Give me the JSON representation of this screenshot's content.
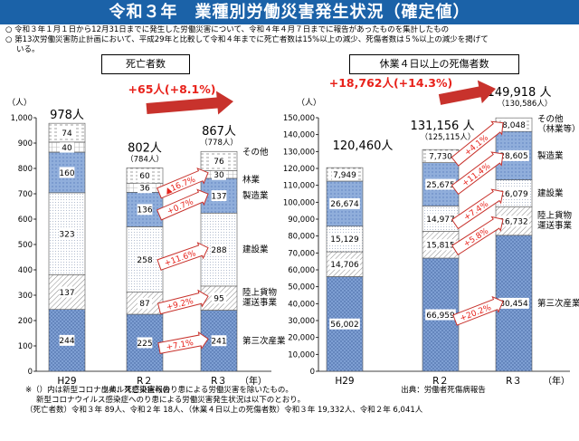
{
  "header": {
    "title": "令和３年　業種別労働災害発生状況（確定値）"
  },
  "bullets": [
    "令和３年１月１日から12月31日までに発生した労働災害について、令和４年４月７日までに報告があったものを集計したもの",
    "第13次労働災害防止計画において、平成29年と比較して令和４年までに死亡者数は15%以上の減少、死傷者数は５%以上の減少を掲げて",
    "いる。"
  ],
  "footnote": [
    "※（）内は新型コロナウイルス感染症へのり患による労働災害を除いたもの。",
    "新型コロナウイルス感染症へのり患による労働災害発生状況は以下のとおり。",
    "（死亡者数）令和３年 89人、令和２年 18人、（休業４日以上の死傷者数）令和３年 19,332人、令和２年 6,041人"
  ],
  "colors": {
    "header_bg": "#1b62a8",
    "tertiary": "#7e9fd3",
    "transport": "#ffffff",
    "construction": "#ffffff",
    "manufacturing": "#90aedb",
    "forestry": "#ffffff",
    "other": "#ffffff",
    "arrow_red": "#c8322c",
    "change_red": "#e8221b"
  },
  "chart_data": [
    {
      "type": "bar",
      "stacked": true,
      "title": "死亡者数",
      "unit_label": "（人）",
      "year_unit": "（年）",
      "source": "出典：死亡災害報告",
      "categories": [
        "H29",
        "R２",
        "R３"
      ],
      "ylim": [
        0,
        1000
      ],
      "yticks": [
        "0",
        "100",
        "200",
        "300",
        "400",
        "500",
        "600",
        "700",
        "800",
        "900",
        "1,000"
      ],
      "series": [
        {
          "name": "第三次産業",
          "values": [
            244,
            225,
            241
          ],
          "labels": [
            "244",
            "225",
            "241"
          ]
        },
        {
          "name": "陸上貨物運送事業",
          "values": [
            137,
            87,
            95
          ],
          "labels": [
            "137",
            "87",
            "95"
          ]
        },
        {
          "name": "建設業",
          "values": [
            323,
            258,
            288
          ],
          "labels": [
            "323",
            "258",
            "288"
          ]
        },
        {
          "name": "製造業",
          "values": [
            160,
            136,
            137
          ],
          "labels": [
            "160",
            "136",
            "137"
          ]
        },
        {
          "name": "林業",
          "values": [
            40,
            36,
            30
          ],
          "labels": [
            "40",
            "36",
            "30"
          ]
        },
        {
          "name": "その他",
          "values": [
            74,
            60,
            76
          ],
          "labels": [
            "74",
            "60",
            "76"
          ]
        }
      ],
      "totals": [
        "978人",
        "802人",
        "867人"
      ],
      "excl_covid": [
        "",
        "（784人）",
        "（778人）"
      ],
      "overall_change": "+65人(+8.1%)",
      "segment_changes": [
        {
          "series": "林業",
          "label": "▲16.7%"
        },
        {
          "series": "製造業",
          "label": "+0.7%"
        },
        {
          "series": "建設業",
          "label": "+11.6%"
        },
        {
          "series": "陸上貨物運送事業",
          "label": "+9.2%"
        },
        {
          "series": "第三次産業",
          "label": "+7.1%"
        }
      ],
      "legend": [
        {
          "series": "その他",
          "label": "その他"
        },
        {
          "series": "林業",
          "label": "林業"
        },
        {
          "series": "製造業",
          "label": "製造業"
        },
        {
          "series": "建設業",
          "label": "建設業"
        },
        {
          "series": "陸上貨物運送事業",
          "label": "陸上貨物",
          "label2": "運送事業"
        },
        {
          "series": "第三次産業",
          "label": "第三次産業"
        }
      ]
    },
    {
      "type": "bar",
      "stacked": true,
      "title": "休業４日以上の死傷者数",
      "unit_label": "（人）",
      "year_unit": "（年）",
      "source": "出典：労働者死傷病報告",
      "categories": [
        "H29",
        "R２",
        "R３"
      ],
      "ylim": [
        0,
        150000
      ],
      "yticks": [
        "0",
        "10,000",
        "20,000",
        "30,000",
        "40,000",
        "50,000",
        "60,000",
        "70,000",
        "80,000",
        "90,000",
        "100,000",
        "110,000",
        "120,000",
        "130,000",
        "140,000",
        "150,000"
      ],
      "series": [
        {
          "name": "第三次産業",
          "values": [
            56002,
            66959,
            80454
          ],
          "labels": [
            "56,002",
            "66,959",
            "80,454"
          ]
        },
        {
          "name": "陸上貨物運送事業",
          "values": [
            14706,
            15815,
            16732
          ],
          "labels": [
            "14,706",
            "15,815",
            "16,732"
          ]
        },
        {
          "name": "建設業",
          "values": [
            15129,
            14977,
            16079
          ],
          "labels": [
            "15,129",
            "14,977",
            "16,079"
          ]
        },
        {
          "name": "製造業",
          "values": [
            26674,
            25675,
            28605
          ],
          "labels": [
            "26,674",
            "25,675",
            "28,605"
          ]
        },
        {
          "name": "その他（林業等）",
          "values": [
            7949,
            7730,
            8048
          ],
          "labels": [
            "7,949",
            "7,730",
            "8,048"
          ]
        }
      ],
      "totals": [
        "120,460人",
        "131,156 人",
        "149,918 人"
      ],
      "excl_covid": [
        "",
        "（125,115人）",
        "（130,586人）"
      ],
      "overall_change": "+18,762人(+14.3%)",
      "segment_changes": [
        {
          "series": "その他（林業等）",
          "label": "+4.1%"
        },
        {
          "series": "製造業",
          "label": "+11.4%"
        },
        {
          "series": "建設業",
          "label": "+7.4%"
        },
        {
          "series": "陸上貨物運送事業",
          "label": "+5.8%"
        },
        {
          "series": "第三次産業",
          "label": "+20.2%"
        }
      ],
      "legend": [
        {
          "series": "その他（林業等）",
          "label": "その他",
          "label2": "（林業等）"
        },
        {
          "series": "製造業",
          "label": "製造業"
        },
        {
          "series": "建設業",
          "label": "建設業"
        },
        {
          "series": "陸上貨物運送事業",
          "label": "陸上貨物",
          "label2": "運送事業"
        },
        {
          "series": "第三次産業",
          "label": "第三次産業"
        }
      ]
    }
  ]
}
